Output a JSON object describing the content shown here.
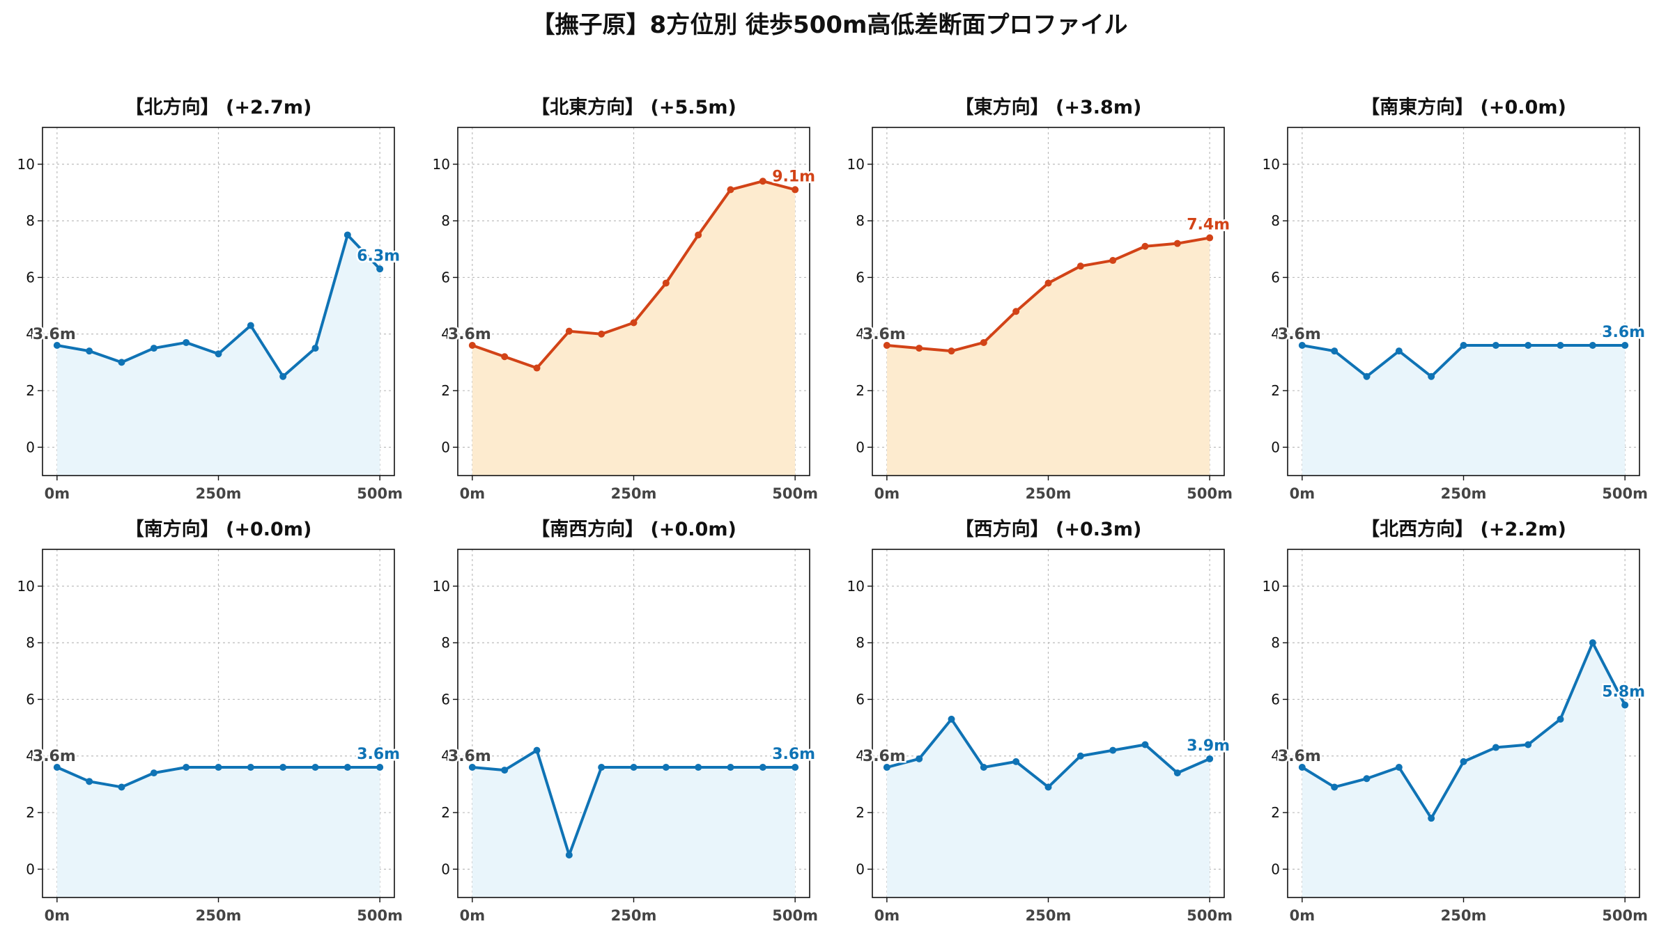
{
  "figure_title": "【撫子原】8方位別 徒歩500m高低差断面プロファイル",
  "colors": {
    "up_line": "#d24317",
    "up_fill": "#fdebcf",
    "flat_line": "#0f73b5",
    "flat_fill": "#e9f5fb",
    "start_label": "#444444",
    "grid": "#bbbbbb",
    "axis": "#111111"
  },
  "chart_data": [
    {
      "type": "area",
      "title": "【北方向】 (+2.7m)",
      "style": "flat",
      "x": [
        0,
        50,
        100,
        150,
        200,
        250,
        300,
        350,
        400,
        450,
        500
      ],
      "y": [
        3.6,
        3.4,
        3.0,
        3.5,
        3.7,
        3.3,
        4.3,
        2.5,
        3.5,
        7.5,
        6.3
      ],
      "xticks": [
        "0m",
        "250m",
        "500m"
      ],
      "yticks": [
        0,
        2,
        4,
        6,
        8,
        10
      ],
      "ylim": [
        -1,
        11.3
      ],
      "xlim": [
        0,
        500
      ],
      "grid": true,
      "start_label": "3.6m",
      "end_label": "6.3m"
    },
    {
      "type": "area",
      "title": "【北東方向】 (+5.5m)",
      "style": "up",
      "x": [
        0,
        50,
        100,
        150,
        200,
        250,
        300,
        350,
        400,
        450,
        500
      ],
      "y": [
        3.6,
        3.2,
        2.8,
        4.1,
        4.0,
        4.4,
        5.8,
        7.5,
        9.1,
        9.4,
        9.1
      ],
      "xticks": [
        "0m",
        "250m",
        "500m"
      ],
      "yticks": [
        0,
        2,
        4,
        6,
        8,
        10
      ],
      "ylim": [
        -1,
        11.3
      ],
      "xlim": [
        0,
        500
      ],
      "grid": true,
      "start_label": "3.6m",
      "end_label": "9.1m"
    },
    {
      "type": "area",
      "title": "【東方向】 (+3.8m)",
      "style": "up",
      "x": [
        0,
        50,
        100,
        150,
        200,
        250,
        300,
        350,
        400,
        450,
        500
      ],
      "y": [
        3.6,
        3.5,
        3.4,
        3.7,
        4.8,
        5.8,
        6.4,
        6.6,
        7.1,
        7.2,
        7.4
      ],
      "xticks": [
        "0m",
        "250m",
        "500m"
      ],
      "yticks": [
        0,
        2,
        4,
        6,
        8,
        10
      ],
      "ylim": [
        -1,
        11.3
      ],
      "xlim": [
        0,
        500
      ],
      "grid": true,
      "start_label": "3.6m",
      "end_label": "7.4m"
    },
    {
      "type": "area",
      "title": "【南東方向】 (+0.0m)",
      "style": "flat",
      "x": [
        0,
        50,
        100,
        150,
        200,
        250,
        300,
        350,
        400,
        450,
        500
      ],
      "y": [
        3.6,
        3.4,
        2.5,
        3.4,
        2.5,
        3.6,
        3.6,
        3.6,
        3.6,
        3.6,
        3.6
      ],
      "xticks": [
        "0m",
        "250m",
        "500m"
      ],
      "yticks": [
        0,
        2,
        4,
        6,
        8,
        10
      ],
      "ylim": [
        -1,
        11.3
      ],
      "xlim": [
        0,
        500
      ],
      "grid": true,
      "start_label": "3.6m",
      "end_label": "3.6m"
    },
    {
      "type": "area",
      "title": "【南方向】 (+0.0m)",
      "style": "flat",
      "x": [
        0,
        50,
        100,
        150,
        200,
        250,
        300,
        350,
        400,
        450,
        500
      ],
      "y": [
        3.6,
        3.1,
        2.9,
        3.4,
        3.6,
        3.6,
        3.6,
        3.6,
        3.6,
        3.6,
        3.6
      ],
      "xticks": [
        "0m",
        "250m",
        "500m"
      ],
      "yticks": [
        0,
        2,
        4,
        6,
        8,
        10
      ],
      "ylim": [
        -1,
        11.3
      ],
      "xlim": [
        0,
        500
      ],
      "grid": true,
      "start_label": "3.6m",
      "end_label": "3.6m"
    },
    {
      "type": "area",
      "title": "【南西方向】 (+0.0m)",
      "style": "flat",
      "x": [
        0,
        50,
        100,
        150,
        200,
        250,
        300,
        350,
        400,
        450,
        500
      ],
      "y": [
        3.6,
        3.5,
        4.2,
        0.5,
        3.6,
        3.6,
        3.6,
        3.6,
        3.6,
        3.6,
        3.6
      ],
      "xticks": [
        "0m",
        "250m",
        "500m"
      ],
      "yticks": [
        0,
        2,
        4,
        6,
        8,
        10
      ],
      "ylim": [
        -1,
        11.3
      ],
      "xlim": [
        0,
        500
      ],
      "grid": true,
      "start_label": "3.6m",
      "end_label": "3.6m"
    },
    {
      "type": "area",
      "title": "【西方向】 (+0.3m)",
      "style": "flat",
      "x": [
        0,
        50,
        100,
        150,
        200,
        250,
        300,
        350,
        400,
        450,
        500
      ],
      "y": [
        3.6,
        3.9,
        5.3,
        3.6,
        3.8,
        2.9,
        4.0,
        4.2,
        4.4,
        3.4,
        3.9
      ],
      "xticks": [
        "0m",
        "250m",
        "500m"
      ],
      "yticks": [
        0,
        2,
        4,
        6,
        8,
        10
      ],
      "ylim": [
        -1,
        11.3
      ],
      "xlim": [
        0,
        500
      ],
      "grid": true,
      "start_label": "3.6m",
      "end_label": "3.9m"
    },
    {
      "type": "area",
      "title": "【北西方向】 (+2.2m)",
      "style": "flat",
      "x": [
        0,
        50,
        100,
        150,
        200,
        250,
        300,
        350,
        400,
        450,
        500
      ],
      "y": [
        3.6,
        2.9,
        3.2,
        3.6,
        1.8,
        3.8,
        4.3,
        4.4,
        5.3,
        8.0,
        5.8
      ],
      "xticks": [
        "0m",
        "250m",
        "500m"
      ],
      "yticks": [
        0,
        2,
        4,
        6,
        8,
        10
      ],
      "ylim": [
        -1,
        11.3
      ],
      "xlim": [
        0,
        500
      ],
      "grid": true,
      "start_label": "3.6m",
      "end_label": "5.8m"
    }
  ]
}
